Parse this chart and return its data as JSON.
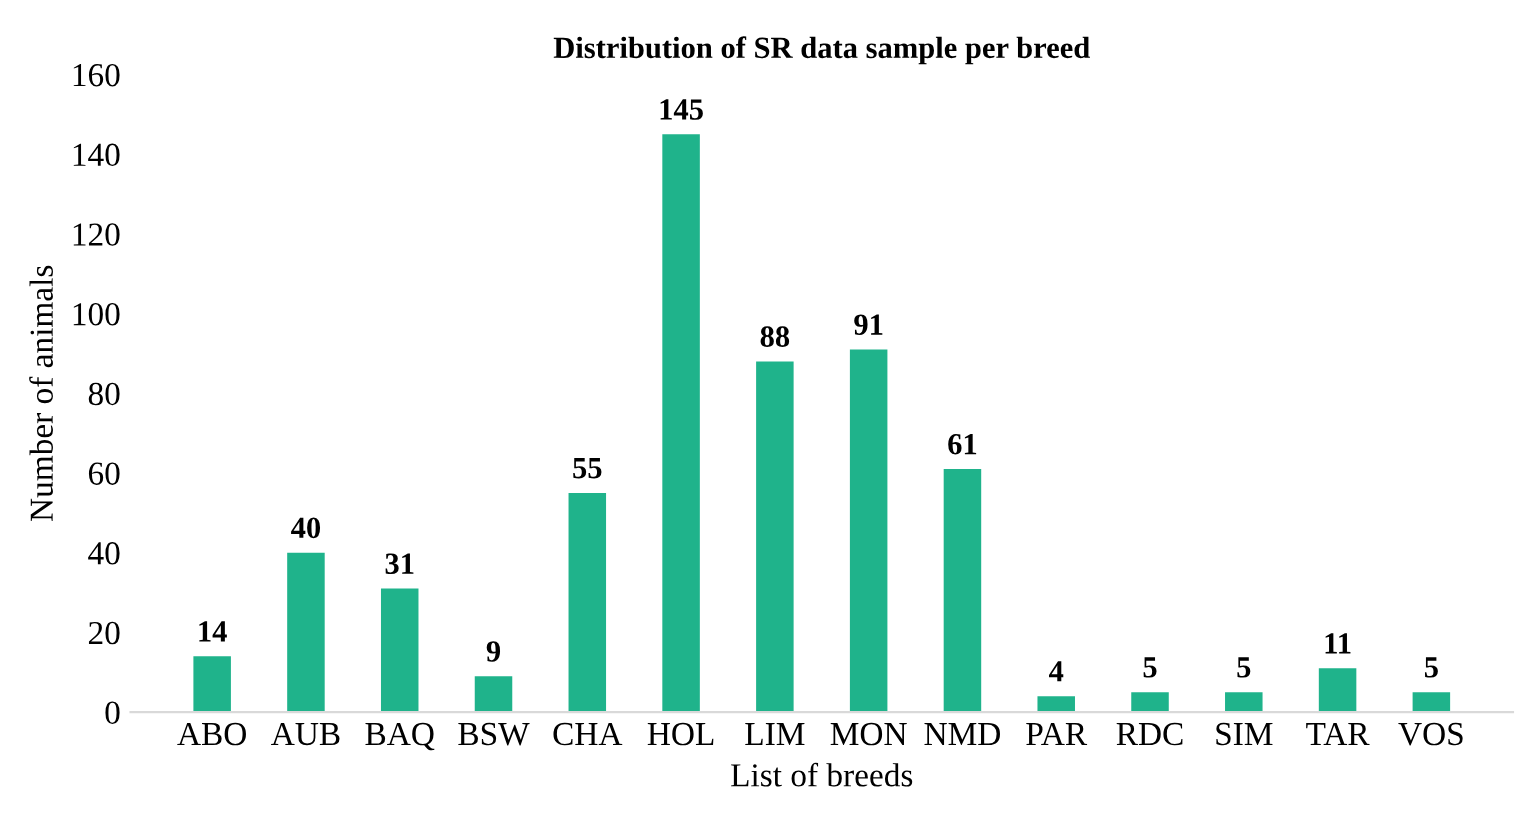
{
  "chart_data": {
    "type": "bar",
    "title": "Distribution of SR data sample per breed",
    "xlabel": "List of breeds",
    "ylabel": "Number of animals",
    "categories": [
      "ABO",
      "AUB",
      "BAQ",
      "BSW",
      "CHA",
      "HOL",
      "LIM",
      "MON",
      "NMD",
      "PAR",
      "RDC",
      "SIM",
      "TAR",
      "VOS"
    ],
    "values": [
      14,
      40,
      31,
      9,
      55,
      145,
      88,
      91,
      61,
      4,
      5,
      5,
      11,
      5
    ],
    "color": "#1fb38b",
    "ylim": [
      0,
      160
    ],
    "yticks": [
      0,
      20,
      40,
      60,
      80,
      100,
      120,
      140,
      160
    ],
    "grid": false,
    "data_labels": true
  }
}
